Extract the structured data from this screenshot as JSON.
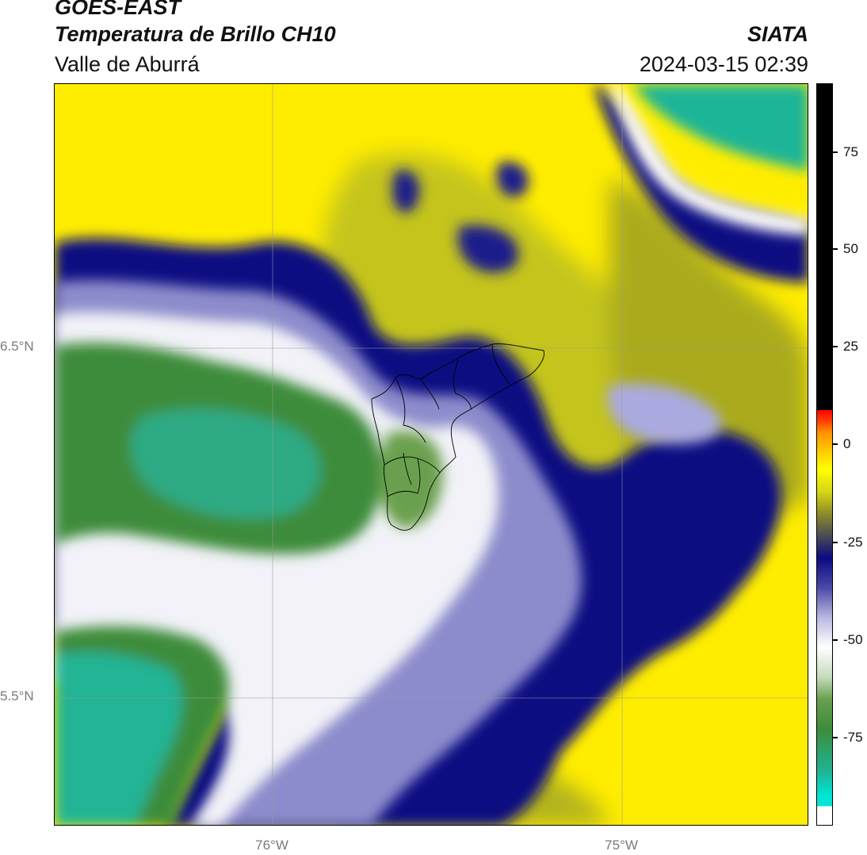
{
  "header": {
    "satellite": "GOES-EAST",
    "product": "Temperatura de Brillo CH10",
    "region": "Valle de Aburrá",
    "agency": "SIATA",
    "timestamp": "2024-03-15 02:39"
  },
  "map": {
    "lat_labels": [
      "6.5°N",
      "5.5°N"
    ],
    "lon_labels": [
      "76°W",
      "75°W"
    ]
  },
  "colorbar": {
    "tick_labels": [
      "75",
      "50",
      "25",
      "0",
      "-25",
      "-50",
      "-75"
    ],
    "ramp_colors": [
      "#ffffff",
      "#00e6d6",
      "#1fb598",
      "#3c8c3a",
      "#6aa04e",
      "#c6dcc0",
      "#ffffff",
      "#b8b8e0",
      "#4a4aa8",
      "#0a0a82",
      "#4a4a56",
      "#8c8c28",
      "#d6d618",
      "#ffff00",
      "#ffd400",
      "#ff9000",
      "#ff4000",
      "#ff0000",
      "#000000"
    ]
  }
}
